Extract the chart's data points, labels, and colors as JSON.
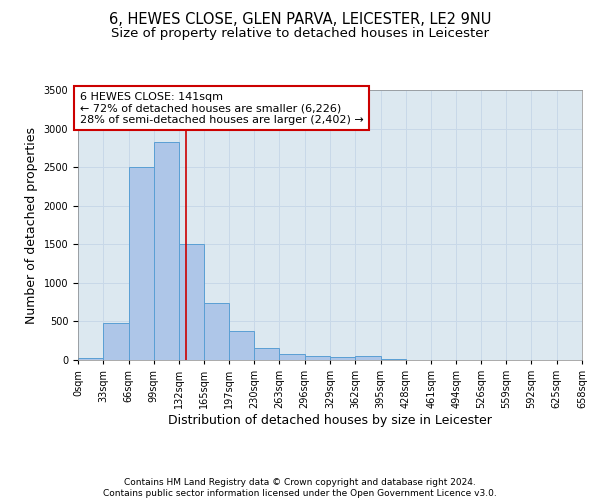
{
  "title_line1": "6, HEWES CLOSE, GLEN PARVA, LEICESTER, LE2 9NU",
  "title_line2": "Size of property relative to detached houses in Leicester",
  "xlabel": "Distribution of detached houses by size in Leicester",
  "ylabel": "Number of detached properties",
  "bin_edges": [
    0,
    33,
    66,
    99,
    132,
    165,
    197,
    230,
    263,
    296,
    329,
    362,
    395,
    428,
    461,
    494,
    526,
    559,
    592,
    625,
    658
  ],
  "bar_values": [
    20,
    480,
    2500,
    2820,
    1500,
    740,
    380,
    155,
    75,
    50,
    40,
    55,
    15,
    0,
    0,
    0,
    0,
    0,
    0,
    0
  ],
  "bar_color": "#aec6e8",
  "bar_edge_color": "#5a9fd4",
  "property_size": 141,
  "vline_color": "#cc0000",
  "annotation_text": "6 HEWES CLOSE: 141sqm\n← 72% of detached houses are smaller (6,226)\n28% of semi-detached houses are larger (2,402) →",
  "annotation_box_color": "white",
  "annotation_box_edge_color": "#cc0000",
  "grid_color": "#c8d8e8",
  "background_color": "#dce8f0",
  "ylim": [
    0,
    3500
  ],
  "yticks": [
    0,
    500,
    1000,
    1500,
    2000,
    2500,
    3000,
    3500
  ],
  "tick_labels": [
    "0sqm",
    "33sqm",
    "66sqm",
    "99sqm",
    "132sqm",
    "165sqm",
    "197sqm",
    "230sqm",
    "263sqm",
    "296sqm",
    "329sqm",
    "362sqm",
    "395sqm",
    "428sqm",
    "461sqm",
    "494sqm",
    "526sqm",
    "559sqm",
    "592sqm",
    "625sqm",
    "658sqm"
  ],
  "footer_text": "Contains HM Land Registry data © Crown copyright and database right 2024.\nContains public sector information licensed under the Open Government Licence v3.0.",
  "title_fontsize": 10.5,
  "subtitle_fontsize": 9.5,
  "axis_label_fontsize": 9,
  "tick_fontsize": 7,
  "annotation_fontsize": 8,
  "footer_fontsize": 6.5
}
